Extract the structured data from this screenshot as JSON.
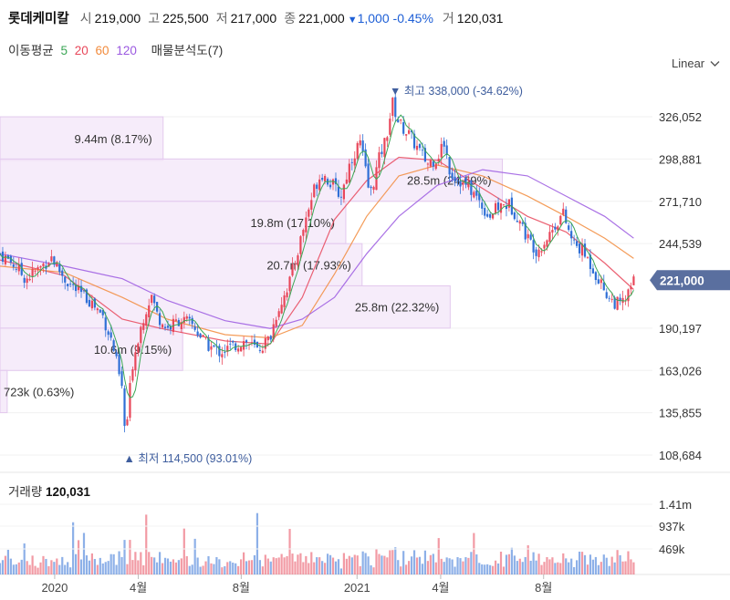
{
  "header": {
    "name": "롯데케미칼",
    "open_label": "시",
    "open_value": "219,000",
    "high_label": "고",
    "high_value": "225,500",
    "low_label": "저",
    "low_value": "217,000",
    "close_label": "종",
    "close_value": "221,000",
    "change_arrow": "▼",
    "change_value": "1,000",
    "change_pct": "-0.45%",
    "volume_label": "거",
    "volume_value": "120,031"
  },
  "ma_legend": {
    "title": "이동평균",
    "items": [
      {
        "label": "5",
        "color": "#3aa655"
      },
      {
        "label": "20",
        "color": "#e8475a"
      },
      {
        "label": "60",
        "color": "#f28b3c"
      },
      {
        "label": "120",
        "color": "#9b59e0"
      }
    ],
    "profile_label": "매물분석도(7)"
  },
  "scale_selector": {
    "label": "Linear",
    "icon": "chevron-down-icon"
  },
  "volume_panel": {
    "title": "거래량",
    "value": "120,031"
  },
  "colors": {
    "up": "#e8475a",
    "down": "#2f6fd6",
    "current_price_bg": "#5a6f9f",
    "volume_profile": "#f3e6f8"
  },
  "chart_data": {
    "type": "candlestick",
    "y_ticks": [
      "326,052",
      "298,881",
      "271,710",
      "244,539",
      "190,197",
      "163,026",
      "135,855",
      "108,684"
    ],
    "y_range": [
      100000,
      350000
    ],
    "x_ticks": [
      "2020",
      "4월",
      "8월",
      "2021",
      "4월",
      "8월"
    ],
    "current_price": "221,000",
    "max_marker": {
      "arrow": "▼",
      "label": "최고",
      "value": "338,000 (-34.62%)",
      "price": 338000,
      "date_index": 0.61
    },
    "min_marker": {
      "arrow": "▲",
      "label": "최저",
      "value": "114,500 (93.01%)",
      "price": 114500,
      "date_index": 0.195
    },
    "volume_profile": [
      {
        "text": "9.44m (8.17%)",
        "low": 298000,
        "high": 326000,
        "share": 0.25
      },
      {
        "text": "28.5m (24.69%)",
        "low": 271700,
        "high": 298900,
        "share": 0.77
      },
      {
        "text": "19.8m (17.10%)",
        "low": 244500,
        "high": 271700,
        "share": 0.53
      },
      {
        "text": "20.7m (17.93%)",
        "low": 217400,
        "high": 244500,
        "share": 0.555
      },
      {
        "text": "25.8m (22.32%)",
        "low": 190200,
        "high": 217400,
        "share": 0.69
      },
      {
        "text": "10.6m (9.15%)",
        "low": 163000,
        "high": 190200,
        "share": 0.28
      },
      {
        "text": "723k (0.63%)",
        "low": 135900,
        "high": 163000,
        "share": 0.011
      }
    ],
    "price_path": [
      [
        0.0,
        238000
      ],
      [
        0.02,
        232000
      ],
      [
        0.04,
        222000
      ],
      [
        0.06,
        228000
      ],
      [
        0.08,
        236000
      ],
      [
        0.1,
        222000
      ],
      [
        0.12,
        214000
      ],
      [
        0.14,
        208000
      ],
      [
        0.16,
        198000
      ],
      [
        0.175,
        180000
      ],
      [
        0.19,
        150000
      ],
      [
        0.195,
        118000
      ],
      [
        0.205,
        165000
      ],
      [
        0.215,
        185000
      ],
      [
        0.225,
        200000
      ],
      [
        0.235,
        212000
      ],
      [
        0.245,
        198000
      ],
      [
        0.26,
        190000
      ],
      [
        0.28,
        196000
      ],
      [
        0.3,
        192000
      ],
      [
        0.32,
        180000
      ],
      [
        0.34,
        175000
      ],
      [
        0.36,
        178000
      ],
      [
        0.38,
        182000
      ],
      [
        0.4,
        176000
      ],
      [
        0.42,
        184000
      ],
      [
        0.43,
        200000
      ],
      [
        0.45,
        220000
      ],
      [
        0.46,
        235000
      ],
      [
        0.475,
        260000
      ],
      [
        0.49,
        282000
      ],
      [
        0.5,
        290000
      ],
      [
        0.515,
        283000
      ],
      [
        0.53,
        275000
      ],
      [
        0.545,
        298000
      ],
      [
        0.56,
        310000
      ],
      [
        0.575,
        275000
      ],
      [
        0.59,
        300000
      ],
      [
        0.6,
        312000
      ],
      [
        0.61,
        335000
      ],
      [
        0.62,
        322000
      ],
      [
        0.635,
        315000
      ],
      [
        0.65,
        305000
      ],
      [
        0.665,
        296000
      ],
      [
        0.68,
        300000
      ],
      [
        0.69,
        310000
      ],
      [
        0.7,
        290000
      ],
      [
        0.715,
        285000
      ],
      [
        0.73,
        280000
      ],
      [
        0.745,
        272000
      ],
      [
        0.76,
        262000
      ],
      [
        0.775,
        268000
      ],
      [
        0.79,
        270000
      ],
      [
        0.805,
        262000
      ],
      [
        0.82,
        248000
      ],
      [
        0.835,
        240000
      ],
      [
        0.85,
        248000
      ],
      [
        0.865,
        258000
      ],
      [
        0.875,
        264000
      ],
      [
        0.89,
        245000
      ],
      [
        0.905,
        240000
      ],
      [
        0.92,
        230000
      ],
      [
        0.935,
        218000
      ],
      [
        0.95,
        208000
      ],
      [
        0.965,
        205000
      ],
      [
        0.975,
        210000
      ],
      [
        0.985,
        221000
      ]
    ],
    "ma_series": {
      "ma20": [
        [
          0.0,
          234000
        ],
        [
          0.1,
          224000
        ],
        [
          0.19,
          196000
        ],
        [
          0.25,
          190000
        ],
        [
          0.35,
          182000
        ],
        [
          0.42,
          180000
        ],
        [
          0.47,
          210000
        ],
        [
          0.52,
          260000
        ],
        [
          0.57,
          285000
        ],
        [
          0.62,
          300000
        ],
        [
          0.68,
          298000
        ],
        [
          0.75,
          280000
        ],
        [
          0.82,
          262000
        ],
        [
          0.88,
          252000
        ],
        [
          0.94,
          232000
        ],
        [
          0.985,
          215000
        ]
      ],
      "ma60": [
        [
          0.0,
          230000
        ],
        [
          0.1,
          226000
        ],
        [
          0.19,
          210000
        ],
        [
          0.26,
          196000
        ],
        [
          0.35,
          186000
        ],
        [
          0.42,
          184000
        ],
        [
          0.47,
          192000
        ],
        [
          0.52,
          225000
        ],
        [
          0.57,
          262000
        ],
        [
          0.62,
          288000
        ],
        [
          0.68,
          295000
        ],
        [
          0.75,
          288000
        ],
        [
          0.82,
          275000
        ],
        [
          0.88,
          262000
        ],
        [
          0.94,
          248000
        ],
        [
          0.985,
          235000
        ]
      ],
      "ma120": [
        [
          0.0,
          238000
        ],
        [
          0.1,
          230000
        ],
        [
          0.19,
          222000
        ],
        [
          0.26,
          208000
        ],
        [
          0.35,
          195000
        ],
        [
          0.42,
          190000
        ],
        [
          0.47,
          196000
        ],
        [
          0.52,
          210000
        ],
        [
          0.57,
          238000
        ],
        [
          0.62,
          262000
        ],
        [
          0.68,
          282000
        ],
        [
          0.75,
          292000
        ],
        [
          0.82,
          288000
        ],
        [
          0.88,
          275000
        ],
        [
          0.94,
          262000
        ],
        [
          0.985,
          248000
        ]
      ]
    },
    "volume_ticks": [
      "1.41m",
      "937k",
      "469k"
    ]
  }
}
